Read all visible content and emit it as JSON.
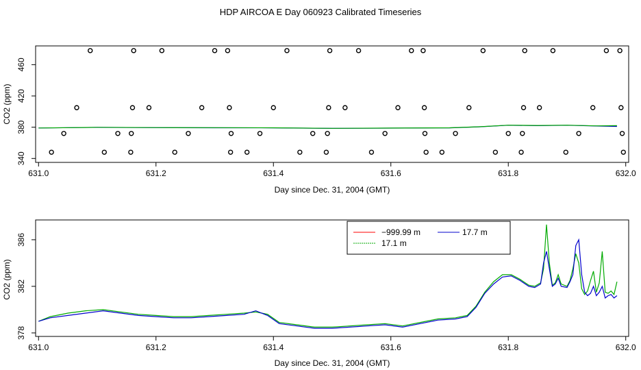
{
  "title": "HDP AIRCOA E  Day 060923  Calibrated Timeseries",
  "chart_data": [
    {
      "type": "line",
      "xlabel": "Day since Dec. 31, 2004 (GMT)",
      "ylabel": "CO2 (ppm)",
      "xlim": [
        630.995,
        632.005
      ],
      "ylim": [
        335,
        484
      ],
      "xticks": [
        "631.0",
        "631.2",
        "631.4",
        "631.6",
        "631.8",
        "632.0"
      ],
      "yticks": [
        "340",
        "380",
        "420",
        "460"
      ],
      "x_tick_values": [
        631.0,
        631.2,
        631.4,
        631.6,
        631.8,
        632.0
      ],
      "y_tick_values": [
        340,
        380,
        420,
        460
      ],
      "series_colors": {
        "blue": "#0000cc",
        "green": "#00aa00"
      },
      "calibration_points": [
        [
          631.022,
          348
        ],
        [
          631.043,
          372
        ],
        [
          631.065,
          405
        ],
        [
          631.088,
          478
        ],
        [
          631.112,
          348
        ],
        [
          631.135,
          372
        ],
        [
          631.157,
          348
        ],
        [
          631.158,
          372
        ],
        [
          631.16,
          405
        ],
        [
          631.162,
          478
        ],
        [
          631.188,
          405
        ],
        [
          631.21,
          478
        ],
        [
          631.232,
          348
        ],
        [
          631.255,
          372
        ],
        [
          631.278,
          405
        ],
        [
          631.3,
          478
        ],
        [
          631.322,
          478
        ],
        [
          631.325,
          405
        ],
        [
          631.327,
          348
        ],
        [
          631.328,
          372
        ],
        [
          631.355,
          348
        ],
        [
          631.377,
          372
        ],
        [
          631.4,
          405
        ],
        [
          631.423,
          478
        ],
        [
          631.445,
          348
        ],
        [
          631.467,
          372
        ],
        [
          631.49,
          348
        ],
        [
          631.492,
          372
        ],
        [
          631.494,
          405
        ],
        [
          631.496,
          478
        ],
        [
          631.522,
          405
        ],
        [
          631.545,
          478
        ],
        [
          631.567,
          348
        ],
        [
          631.59,
          372
        ],
        [
          631.612,
          405
        ],
        [
          631.635,
          478
        ],
        [
          631.655,
          478
        ],
        [
          631.657,
          405
        ],
        [
          631.658,
          372
        ],
        [
          631.66,
          348
        ],
        [
          631.687,
          348
        ],
        [
          631.71,
          372
        ],
        [
          631.733,
          405
        ],
        [
          631.757,
          478
        ],
        [
          631.778,
          348
        ],
        [
          631.8,
          372
        ],
        [
          631.822,
          348
        ],
        [
          631.824,
          372
        ],
        [
          631.826,
          405
        ],
        [
          631.828,
          478
        ],
        [
          631.853,
          405
        ],
        [
          631.876,
          478
        ],
        [
          631.898,
          348
        ],
        [
          631.92,
          372
        ],
        [
          631.944,
          405
        ],
        [
          631.967,
          478
        ],
        [
          631.99,
          478
        ],
        [
          631.992,
          405
        ],
        [
          631.994,
          372
        ],
        [
          631.996,
          348
        ]
      ],
      "series": [
        {
          "color": "blue",
          "x": [
            631.0,
            631.1,
            631.2,
            631.3,
            631.4,
            631.5,
            631.6,
            631.7,
            631.75,
            631.8,
            631.85,
            631.9,
            631.95,
            631.985
          ],
          "values": [
            379,
            379.8,
            379.4,
            379.3,
            379.2,
            378.5,
            378.8,
            379.2,
            380.5,
            382.5,
            382,
            382.5,
            381.5,
            381
          ]
        },
        {
          "color": "green",
          "x": [
            631.0,
            631.1,
            631.2,
            631.3,
            631.4,
            631.5,
            631.6,
            631.7,
            631.75,
            631.8,
            631.85,
            631.9,
            631.95,
            631.985
          ],
          "values": [
            379,
            379.9,
            379.5,
            379.4,
            379.3,
            378.6,
            378.9,
            379.3,
            380.6,
            382.6,
            382.2,
            382.6,
            381.7,
            382
          ]
        }
      ]
    },
    {
      "type": "line",
      "xlabel": "Day since Dec. 31, 2004 (GMT)",
      "ylabel": "CO2 (ppm)",
      "xlim": [
        630.995,
        632.005
      ],
      "ylim": [
        377.7,
        387.7
      ],
      "xticks": [
        "631.0",
        "631.2",
        "631.4",
        "631.6",
        "631.8",
        "632.0"
      ],
      "yticks": [
        "378",
        "382",
        "386"
      ],
      "x_tick_values": [
        631.0,
        631.2,
        631.4,
        631.6,
        631.8,
        632.0
      ],
      "y_tick_values": [
        378,
        382,
        386
      ],
      "legend": {
        "placement": "top-right",
        "entries": [
          {
            "label": "−999.99 m",
            "color": "#ff0000"
          },
          {
            "label": "17.1 m",
            "color": "#00aa00"
          },
          {
            "label": "17.7 m",
            "color": "#0000cc"
          }
        ]
      },
      "series": [
        {
          "name": "17.1 m",
          "color": "#00aa00",
          "x": [
            631.0,
            631.02,
            631.05,
            631.08,
            631.11,
            631.14,
            631.17,
            631.2,
            631.23,
            631.26,
            631.29,
            631.32,
            631.35,
            631.37,
            631.39,
            631.41,
            631.44,
            631.47,
            631.5,
            631.53,
            631.56,
            631.59,
            631.62,
            631.65,
            631.68,
            631.71,
            631.73,
            631.745,
            631.76,
            631.775,
            631.79,
            631.805,
            631.82,
            631.835,
            631.845,
            631.855,
            631.86,
            631.865,
            631.87,
            631.875,
            631.88,
            631.885,
            631.89,
            631.9,
            631.905,
            631.91,
            631.915,
            631.92,
            631.925,
            631.93,
            631.935,
            631.94,
            631.945,
            631.95,
            631.955,
            631.96,
            631.965,
            631.97,
            631.975,
            631.98,
            631.985
          ],
          "values": [
            379.0,
            379.4,
            379.7,
            379.9,
            380.0,
            379.8,
            379.6,
            379.5,
            379.4,
            379.4,
            379.5,
            379.6,
            379.7,
            379.8,
            379.6,
            378.9,
            378.7,
            378.5,
            378.5,
            378.6,
            378.7,
            378.8,
            378.6,
            378.9,
            379.2,
            379.3,
            379.5,
            380.3,
            381.5,
            382.4,
            383.0,
            383.0,
            382.6,
            382.1,
            382.0,
            382.3,
            383.5,
            387.3,
            384.0,
            382.1,
            382.3,
            383.0,
            382.2,
            382.0,
            382.5,
            383.5,
            384.8,
            384.0,
            381.8,
            381.3,
            381.6,
            382.5,
            383.3,
            381.5,
            382.3,
            385.0,
            381.5,
            381.4,
            381.6,
            381.3,
            382.4
          ]
        },
        {
          "name": "17.7 m",
          "color": "#0000cc",
          "x": [
            631.0,
            631.02,
            631.05,
            631.08,
            631.11,
            631.14,
            631.17,
            631.2,
            631.23,
            631.26,
            631.29,
            631.32,
            631.35,
            631.37,
            631.39,
            631.41,
            631.44,
            631.47,
            631.5,
            631.53,
            631.56,
            631.59,
            631.62,
            631.65,
            631.68,
            631.71,
            631.73,
            631.745,
            631.76,
            631.775,
            631.79,
            631.805,
            631.82,
            631.835,
            631.845,
            631.855,
            631.86,
            631.865,
            631.87,
            631.875,
            631.88,
            631.885,
            631.89,
            631.9,
            631.905,
            631.91,
            631.915,
            631.92,
            631.925,
            631.93,
            631.935,
            631.94,
            631.945,
            631.95,
            631.955,
            631.96,
            631.965,
            631.97,
            631.975,
            631.98,
            631.985
          ],
          "values": [
            379.0,
            379.3,
            379.5,
            379.7,
            379.9,
            379.7,
            379.5,
            379.4,
            379.3,
            379.3,
            379.4,
            379.5,
            379.6,
            379.9,
            379.5,
            378.8,
            378.6,
            378.4,
            378.4,
            378.5,
            378.6,
            378.7,
            378.5,
            378.8,
            379.1,
            379.2,
            379.4,
            380.2,
            381.4,
            382.2,
            382.8,
            382.9,
            382.5,
            382.0,
            381.9,
            382.2,
            384.0,
            385.0,
            383.5,
            382.0,
            382.2,
            382.7,
            382.0,
            381.9,
            382.4,
            383.0,
            385.5,
            386.0,
            383.0,
            381.5,
            381.2,
            381.4,
            382.0,
            381.2,
            381.5,
            382.0,
            381.0,
            381.2,
            381.3,
            381.0,
            381.2
          ]
        }
      ]
    }
  ]
}
